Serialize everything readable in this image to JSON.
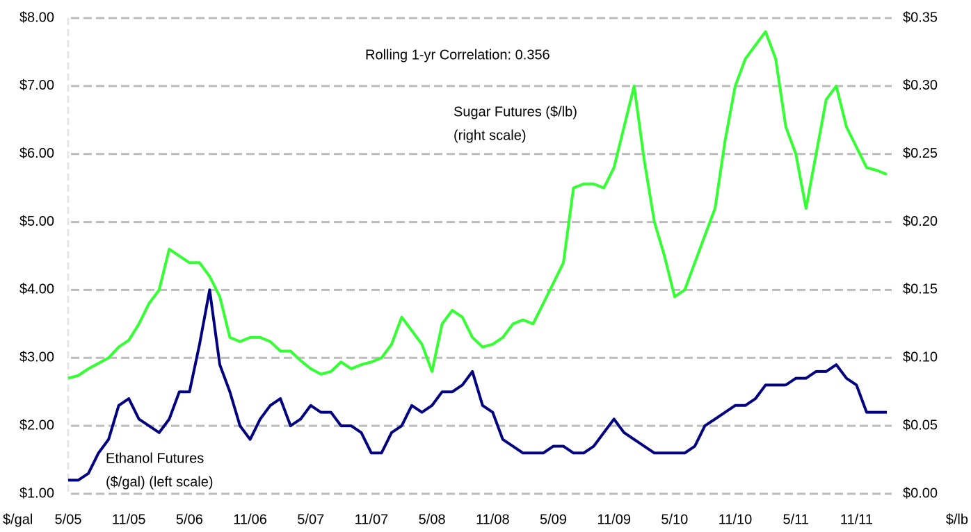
{
  "chart_data": {
    "type": "line",
    "annotation": "Rolling 1-yr Correlation: 0.356",
    "y_unit_label": "$/gal",
    "y2_unit_label": "$/lb",
    "categories": [
      "5/05",
      null,
      null,
      null,
      null,
      null,
      "11/05",
      null,
      null,
      null,
      null,
      null,
      "5/06",
      null,
      null,
      null,
      null,
      null,
      "11/06",
      null,
      null,
      null,
      null,
      null,
      "5/07",
      null,
      null,
      null,
      null,
      null,
      "11/07",
      null,
      null,
      null,
      null,
      null,
      "5/08",
      null,
      null,
      null,
      null,
      null,
      "11/08",
      null,
      null,
      null,
      null,
      null,
      "5/09",
      null,
      null,
      null,
      null,
      null,
      "11/09",
      null,
      null,
      null,
      null,
      null,
      "5/10",
      null,
      null,
      null,
      null,
      null,
      "11/10",
      null,
      null,
      null,
      null,
      null,
      "5/11",
      null,
      null,
      null,
      null,
      null,
      "11/11",
      null,
      null,
      null
    ],
    "ylim": [
      1,
      8
    ],
    "yticks": [
      {
        "value": 1,
        "label": "$1.00"
      },
      {
        "value": 2,
        "label": "$2.00"
      },
      {
        "value": 3,
        "label": "$3.00"
      },
      {
        "value": 4,
        "label": "$4.00"
      },
      {
        "value": 5,
        "label": "$5.00"
      },
      {
        "value": 6,
        "label": "$6.00"
      },
      {
        "value": 7,
        "label": "$7.00"
      },
      {
        "value": 8,
        "label": "$8.00"
      }
    ],
    "y2lim": [
      0,
      0.35
    ],
    "y2ticks": [
      {
        "value": 0,
        "label": "$0.00"
      },
      {
        "value": 0.05,
        "label": "$0.05"
      },
      {
        "value": 0.1,
        "label": "$0.10"
      },
      {
        "value": 0.15,
        "label": "$0.15"
      },
      {
        "value": 0.2,
        "label": "$0.20"
      },
      {
        "value": 0.25,
        "label": "$0.25"
      },
      {
        "value": 0.3,
        "label": "$0.30"
      },
      {
        "value": 0.35,
        "label": "$0.35"
      }
    ],
    "grid": true,
    "series": [
      {
        "name": "Sugar Futures ($/lb)",
        "note": "(right scale)",
        "color": "#33ff33",
        "axis": "y2",
        "values": [
          0.085,
          0.087,
          0.092,
          0.096,
          0.1,
          0.108,
          0.113,
          0.125,
          0.14,
          0.15,
          0.18,
          0.175,
          0.17,
          0.17,
          0.16,
          0.145,
          0.115,
          0.112,
          0.115,
          0.115,
          0.112,
          0.105,
          0.105,
          0.098,
          0.092,
          0.088,
          0.09,
          0.097,
          0.092,
          0.095,
          0.097,
          0.1,
          0.11,
          0.13,
          0.12,
          0.11,
          0.09,
          0.125,
          0.135,
          0.13,
          0.115,
          0.108,
          0.11,
          0.115,
          0.125,
          0.128,
          0.125,
          0.14,
          0.155,
          0.17,
          0.225,
          0.228,
          0.228,
          0.225,
          0.24,
          0.27,
          0.3,
          0.245,
          0.2,
          0.175,
          0.145,
          0.15,
          0.17,
          0.19,
          0.21,
          0.26,
          0.3,
          0.32,
          0.33,
          0.34,
          0.32,
          0.27,
          0.25,
          0.21,
          0.25,
          0.29,
          0.3,
          0.27,
          0.255,
          0.24,
          0.238,
          0.235
        ]
      },
      {
        "name": "Ethanol Futures",
        "note": "($/gal) (left scale)",
        "color": "#000080",
        "axis": "y",
        "values": [
          1.2,
          1.2,
          1.3,
          1.6,
          1.8,
          2.3,
          2.4,
          2.1,
          2.0,
          1.9,
          2.1,
          2.5,
          2.5,
          3.2,
          4.0,
          2.9,
          2.5,
          2.0,
          1.8,
          2.1,
          2.3,
          2.4,
          2.0,
          2.1,
          2.3,
          2.2,
          2.2,
          2.0,
          2.0,
          1.9,
          1.6,
          1.6,
          1.9,
          2.0,
          2.3,
          2.2,
          2.3,
          2.5,
          2.5,
          2.6,
          2.8,
          2.3,
          2.2,
          1.8,
          1.7,
          1.6,
          1.6,
          1.6,
          1.7,
          1.7,
          1.6,
          1.6,
          1.7,
          1.9,
          2.1,
          1.9,
          1.8,
          1.7,
          1.6,
          1.6,
          1.6,
          1.6,
          1.7,
          2.0,
          2.1,
          2.2,
          2.3,
          2.3,
          2.4,
          2.6,
          2.6,
          2.6,
          2.7,
          2.7,
          2.8,
          2.8,
          2.9,
          2.7,
          2.6,
          2.2,
          2.2,
          2.2
        ]
      }
    ]
  }
}
